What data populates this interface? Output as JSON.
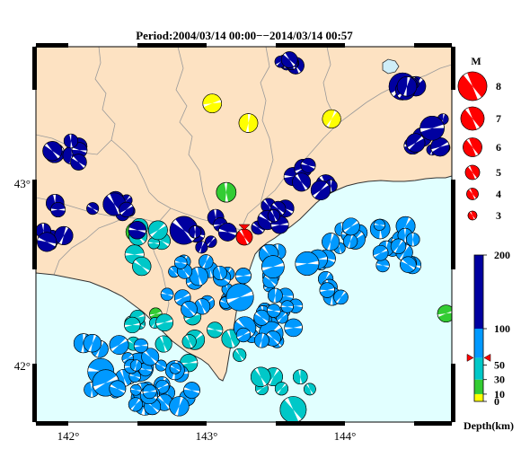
{
  "title": "Period:2004/03/14 00:00−−2014/03/14 00:57",
  "axes": {
    "x_ticks": [
      "142°",
      "143°",
      "144°"
    ],
    "y_ticks": [
      "43°",
      "42°"
    ]
  },
  "colors": {
    "land": "#fde2c2",
    "sea": "#e1ffff",
    "lake": "#cfeef8",
    "boundary": "#9a9a9a",
    "coast": "#333333",
    "main_event": "#ff0000"
  },
  "magnitude_legend": {
    "title": "M",
    "items": [
      "8",
      "7",
      "6",
      "5",
      "4",
      "3"
    ]
  },
  "depth_legend": {
    "title": "Depth(km)",
    "ticks": [
      "200",
      "100",
      "50",
      "30",
      "10",
      "0"
    ],
    "marker_value": 60,
    "bands": [
      {
        "from": 0,
        "to": 10,
        "color": "#ffff00"
      },
      {
        "from": 10,
        "to": 30,
        "color": "#33cc33"
      },
      {
        "from": 30,
        "to": 60,
        "color": "#00c8c8"
      },
      {
        "from": 60,
        "to": 100,
        "color": "#0099ff"
      },
      {
        "from": 100,
        "to": 200,
        "color": "#0000a0"
      }
    ]
  },
  "events_by_depth": [
    {
      "depth": 5,
      "count": 3
    },
    {
      "depth": 20,
      "count": 4
    },
    {
      "depth": 45,
      "count": 30
    },
    {
      "depth": 80,
      "count": 130
    },
    {
      "depth": 150,
      "count": 70
    }
  ],
  "main_event_color": "red"
}
